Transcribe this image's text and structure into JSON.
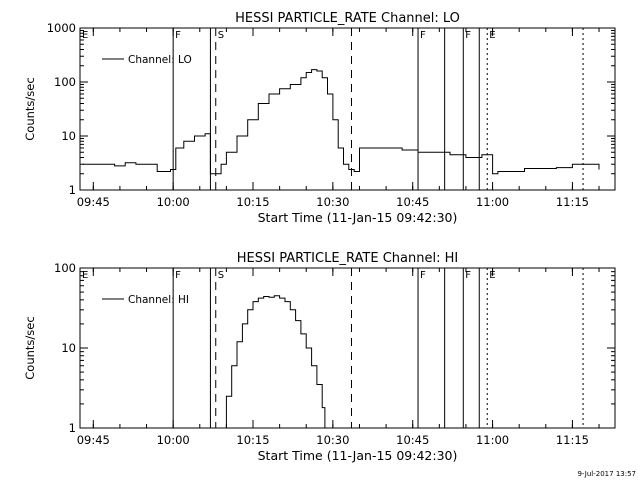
{
  "footer_date": "9-Jul-2017 13:57",
  "chart_data": [
    {
      "type": "line",
      "title": "HESSI PARTICLE_RATE Channel: LO",
      "xlabel": "Start Time (11-Jan-15 09:42:30)",
      "ylabel": "Counts/sec",
      "yscale": "log",
      "ylim": [
        1,
        1000
      ],
      "ytick_labels": [
        "1",
        "10",
        "100",
        "1000"
      ],
      "xlim": [
        "09:42:30",
        "11:23:00"
      ],
      "xtick_labels": [
        "09:45",
        "10:00",
        "10:15",
        "10:30",
        "10:45",
        "11:00",
        "11:15"
      ],
      "grid": false,
      "legend": {
        "label": "Channel: LO",
        "position": "top-left"
      },
      "series": [
        {
          "name": "Channel: LO",
          "x": [
            "09:43:00",
            "09:45:00",
            "09:47:00",
            "09:49:00",
            "09:51:00",
            "09:53:00",
            "09:55:00",
            "09:57:00",
            "09:59:30",
            "10:00:30",
            "10:02:00",
            "10:04:00",
            "10:06:00",
            "10:07:00",
            "10:08:00",
            "10:09:00",
            "10:10:00",
            "10:12:00",
            "10:14:00",
            "10:16:00",
            "10:18:00",
            "10:20:00",
            "10:22:00",
            "10:24:00",
            "10:25:00",
            "10:26:00",
            "10:27:00",
            "10:28:00",
            "10:29:00",
            "10:30:00",
            "10:31:00",
            "10:32:00",
            "10:33:00",
            "10:34:00",
            "10:35:00",
            "10:37:00",
            "10:40:00",
            "10:43:00",
            "10:46:00",
            "10:49:00",
            "10:52:00",
            "10:55:00",
            "10:58:00",
            "11:00:00",
            "11:01:00",
            "11:03:00",
            "11:06:00",
            "11:09:00",
            "11:12:00",
            "11:15:00",
            "11:18:00",
            "11:20:00"
          ],
          "y": [
            3,
            3,
            3,
            2.8,
            3.2,
            3,
            3,
            2.2,
            2.4,
            6,
            8,
            10,
            11,
            2,
            2,
            3,
            5,
            10,
            20,
            40,
            60,
            75,
            90,
            120,
            150,
            170,
            160,
            120,
            60,
            20,
            6,
            3,
            2.4,
            2.2,
            6,
            6,
            6,
            5.5,
            5,
            5,
            4.5,
            4,
            4.5,
            2,
            2.2,
            2.2,
            2.5,
            2.5,
            2.6,
            3,
            3,
            2.4
          ]
        }
      ],
      "flags": [
        {
          "label": "F",
          "x": "10:00:00",
          "style": "solid"
        },
        {
          "label": "",
          "x": "10:07:00",
          "style": "solid"
        },
        {
          "label": "S",
          "x": "10:08:00",
          "style": "dashed"
        },
        {
          "label": "",
          "x": "10:33:30",
          "style": "dashed"
        },
        {
          "label": "F",
          "x": "10:46:00",
          "style": "solid"
        },
        {
          "label": "",
          "x": "10:51:00",
          "style": "solid"
        },
        {
          "label": "F",
          "x": "10:54:30",
          "style": "solid"
        },
        {
          "label": "",
          "x": "10:57:30",
          "style": "solid"
        },
        {
          "label": "E",
          "x": "10:59:00",
          "style": "dotted"
        },
        {
          "label": "",
          "x": "11:17:00",
          "style": "dotted"
        }
      ],
      "corner_flag": "E"
    },
    {
      "type": "line",
      "title": "HESSI PARTICLE_RATE Channel: HI",
      "xlabel": "Start Time (11-Jan-15 09:42:30)",
      "ylabel": "Counts/sec",
      "yscale": "log",
      "ylim": [
        1,
        100
      ],
      "ytick_labels": [
        "1",
        "10",
        "100"
      ],
      "xlim": [
        "09:42:30",
        "11:23:00"
      ],
      "xtick_labels": [
        "09:45",
        "10:00",
        "10:15",
        "10:30",
        "10:45",
        "11:00",
        "11:15"
      ],
      "grid": false,
      "legend": {
        "label": "Channel: HI",
        "position": "top-left"
      },
      "series": [
        {
          "name": "Channel: HI",
          "x": [
            "10:09:00",
            "10:10:00",
            "10:11:00",
            "10:12:00",
            "10:13:00",
            "10:14:00",
            "10:15:00",
            "10:16:00",
            "10:17:00",
            "10:18:00",
            "10:19:00",
            "10:20:00",
            "10:21:00",
            "10:22:00",
            "10:23:00",
            "10:24:00",
            "10:25:00",
            "10:26:00",
            "10:27:00",
            "10:28:00",
            "10:28:30"
          ],
          "y": [
            1,
            2.5,
            6,
            12,
            20,
            30,
            38,
            42,
            44,
            43,
            45,
            42,
            38,
            30,
            22,
            15,
            10,
            6,
            3.5,
            1.8,
            1
          ]
        }
      ],
      "flags": [
        {
          "label": "F",
          "x": "10:00:00",
          "style": "solid"
        },
        {
          "label": "",
          "x": "10:07:00",
          "style": "solid"
        },
        {
          "label": "S",
          "x": "10:08:00",
          "style": "dashed"
        },
        {
          "label": "",
          "x": "10:33:30",
          "style": "dashed"
        },
        {
          "label": "F",
          "x": "10:46:00",
          "style": "solid"
        },
        {
          "label": "",
          "x": "10:51:00",
          "style": "solid"
        },
        {
          "label": "F",
          "x": "10:54:30",
          "style": "solid"
        },
        {
          "label": "",
          "x": "10:57:30",
          "style": "solid"
        },
        {
          "label": "E",
          "x": "10:59:00",
          "style": "dotted"
        },
        {
          "label": "",
          "x": "11:17:00",
          "style": "dotted"
        }
      ],
      "corner_flag": "E"
    }
  ]
}
